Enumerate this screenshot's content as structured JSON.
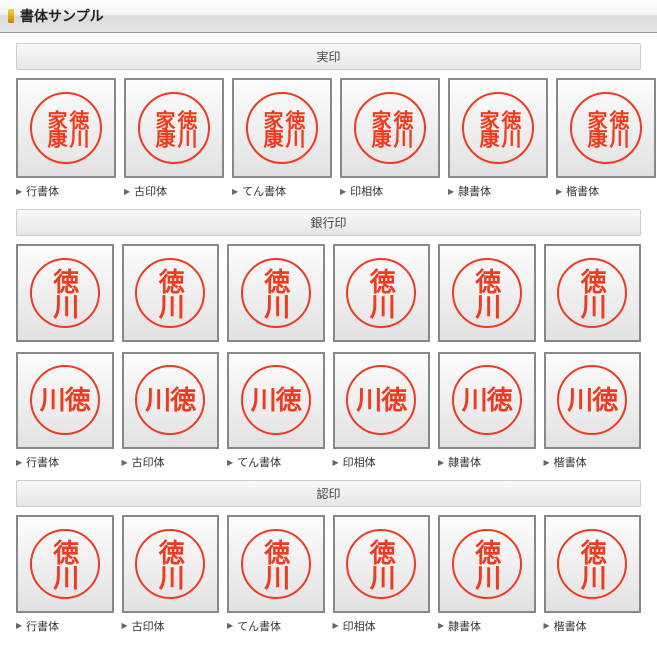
{
  "header": {
    "title": "書体サンプル"
  },
  "font_labels": [
    "行書体",
    "古印体",
    "てん書体",
    "印相体",
    "隷書体",
    "楷書体"
  ],
  "colors": {
    "stamp": "#ef3a1f"
  },
  "sections": [
    {
      "title": "実印",
      "rows": [
        {
          "has_labels": true,
          "stamps": [
            {
              "layout": "grid2x2",
              "cols": [
                "徳川",
                "家康"
              ],
              "fs": 20
            },
            {
              "layout": "grid2x2",
              "cols": [
                "徳川",
                "家康"
              ],
              "fs": 20
            },
            {
              "layout": "grid2x2",
              "cols": [
                "徳川",
                "家康"
              ],
              "fs": 20
            },
            {
              "layout": "grid2x2",
              "cols": [
                "徳川",
                "家康"
              ],
              "fs": 20
            },
            {
              "layout": "grid2x2",
              "cols": [
                "徳川",
                "家康"
              ],
              "fs": 20
            },
            {
              "layout": "grid2x2",
              "cols": [
                "徳川",
                "家康"
              ],
              "fs": 20
            }
          ]
        }
      ]
    },
    {
      "title": "銀行印",
      "rows": [
        {
          "has_labels": false,
          "stamps": [
            {
              "layout": "vert",
              "text": "徳川",
              "fs": 26
            },
            {
              "layout": "vert",
              "text": "徳川",
              "fs": 26
            },
            {
              "layout": "vert",
              "text": "徳川",
              "fs": 26
            },
            {
              "layout": "vert",
              "text": "徳川",
              "fs": 26
            },
            {
              "layout": "vert",
              "text": "徳川",
              "fs": 26
            },
            {
              "layout": "vert",
              "text": "徳川",
              "fs": 26
            }
          ]
        },
        {
          "has_labels": true,
          "stamps": [
            {
              "layout": "horiz",
              "text": "川徳",
              "fs": 26
            },
            {
              "layout": "horiz",
              "text": "川徳",
              "fs": 26
            },
            {
              "layout": "horiz",
              "text": "川徳",
              "fs": 26
            },
            {
              "layout": "horiz",
              "text": "川徳",
              "fs": 26
            },
            {
              "layout": "horiz",
              "text": "川徳",
              "fs": 26
            },
            {
              "layout": "horiz",
              "text": "川徳",
              "fs": 26
            }
          ]
        }
      ]
    },
    {
      "title": "認印",
      "rows": [
        {
          "has_labels": true,
          "stamps": [
            {
              "layout": "vert",
              "text": "徳川",
              "fs": 26
            },
            {
              "layout": "vert",
              "text": "徳川",
              "fs": 26
            },
            {
              "layout": "vert",
              "text": "徳川",
              "fs": 26
            },
            {
              "layout": "vert",
              "text": "徳川",
              "fs": 26
            },
            {
              "layout": "vert",
              "text": "徳川",
              "fs": 26
            },
            {
              "layout": "vert",
              "text": "徳川",
              "fs": 26
            }
          ]
        }
      ]
    }
  ]
}
